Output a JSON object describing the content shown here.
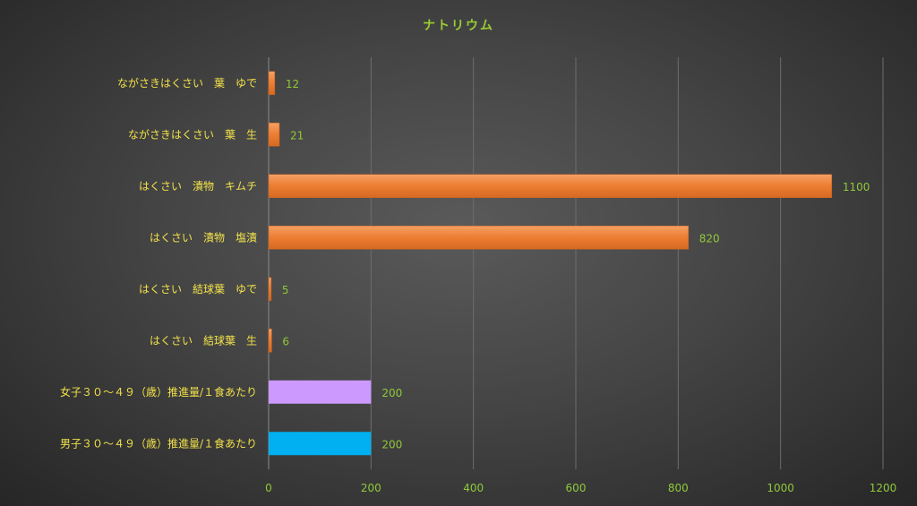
{
  "chart_data": {
    "type": "bar",
    "orientation": "horizontal",
    "title": "ナトリウム",
    "xlabel": "",
    "ylabel": "",
    "xlim": [
      0,
      1200
    ],
    "x_ticks": [
      0,
      200,
      400,
      600,
      800,
      1000,
      1200
    ],
    "grid": true,
    "categories": [
      "ながさきはくさい　葉　ゆで",
      "ながさきはくさい　葉　生",
      "はくさい　漬物　キムチ",
      "はくさい　漬物　塩漬",
      "はくさい　結球葉　ゆで",
      "はくさい　結球葉　生",
      "女子３０～４９（歳）推進量/１食あたり",
      "男子３０～４９（歳）推進量/１食あたり"
    ],
    "values": [
      12,
      21,
      1100,
      820,
      5,
      6,
      200,
      200
    ],
    "bar_colors": [
      "#ed7d31",
      "#ed7d31",
      "#ed7d31",
      "#ed7d31",
      "#ed7d31",
      "#ed7d31",
      "#cc99ff",
      "#00b0f0"
    ]
  }
}
